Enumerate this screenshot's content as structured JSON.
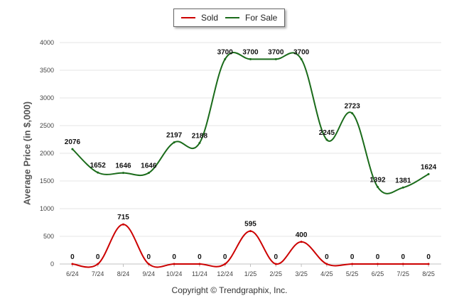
{
  "chart_data": {
    "type": "line",
    "categories": [
      "6/24",
      "7/24",
      "8/24",
      "9/24",
      "10/24",
      "11/24",
      "12/24",
      "1/25",
      "2/25",
      "3/25",
      "4/25",
      "5/25",
      "6/25",
      "7/25",
      "8/25"
    ],
    "series": [
      {
        "name": "Sold",
        "color": "#cc0000",
        "values": [
          0,
          0,
          715,
          0,
          0,
          0,
          0,
          595,
          0,
          400,
          0,
          0,
          0,
          0,
          0
        ],
        "labels": [
          "0",
          "0",
          "715",
          "0",
          "0",
          "0",
          "0",
          "595",
          "0",
          "400",
          "0",
          "0",
          "0",
          "0",
          "0"
        ]
      },
      {
        "name": "For Sale",
        "color": "#1a6b1a",
        "values": [
          2076,
          1652,
          1646,
          1646,
          2197,
          2188,
          3700,
          3700,
          3700,
          3700,
          2245,
          2723,
          1392,
          1381,
          1624
        ],
        "labels": [
          "2076",
          "1652",
          "1646",
          "1646",
          "2197",
          "2188",
          "3700",
          "3700",
          "3700",
          "3700",
          "2245",
          "2723",
          "1392",
          "1381",
          "1624"
        ]
      }
    ],
    "ylabel": "Average Price (in $,000)",
    "ylim": [
      0,
      4000
    ],
    "yticks": [
      "0",
      "500",
      "1000",
      "1500",
      "2000",
      "2500",
      "3000",
      "3500",
      "4000"
    ],
    "ytick_values": [
      0,
      500,
      1000,
      1500,
      2000,
      2500,
      3000,
      3500,
      4000
    ],
    "grid": true,
    "legend_position": "top-center"
  },
  "footer": {
    "credit": "Copyright © Trendgraphix, Inc."
  }
}
